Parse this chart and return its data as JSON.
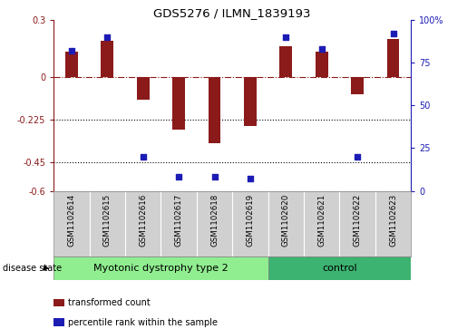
{
  "title": "GDS5276 / ILMN_1839193",
  "samples": [
    "GSM1102614",
    "GSM1102615",
    "GSM1102616",
    "GSM1102617",
    "GSM1102618",
    "GSM1102619",
    "GSM1102620",
    "GSM1102621",
    "GSM1102622",
    "GSM1102623"
  ],
  "transformed_count": [
    0.13,
    0.19,
    -0.12,
    -0.28,
    -0.35,
    -0.26,
    0.16,
    0.13,
    -0.09,
    0.2
  ],
  "percentile_rank": [
    82,
    90,
    20,
    8,
    8,
    7,
    90,
    83,
    20,
    92
  ],
  "ylim_left": [
    -0.6,
    0.3
  ],
  "ylim_right": [
    0,
    100
  ],
  "yticks_left": [
    0.3,
    0.0,
    -0.225,
    -0.45,
    -0.6
  ],
  "yticks_left_labels": [
    "0.3",
    "0",
    "-0.225",
    "-0.45",
    "-0.6"
  ],
  "yticks_right": [
    100,
    75,
    50,
    25,
    0
  ],
  "yticks_right_labels": [
    "100%",
    "75",
    "50",
    "25",
    "0"
  ],
  "hline_y": 0.0,
  "dotted_lines": [
    -0.225,
    -0.45
  ],
  "bar_color": "#8B1A1A",
  "dot_color": "#1C1CB5",
  "group1_label": "Myotonic dystrophy type 2",
  "group1_indices": [
    0,
    1,
    2,
    3,
    4,
    5
  ],
  "group2_label": "control",
  "group2_indices": [
    6,
    7,
    8,
    9
  ],
  "group1_color": "#90EE90",
  "group2_color": "#3CB371",
  "disease_state_label": "disease state",
  "legend_bar_label": "transformed count",
  "legend_dot_label": "percentile rank within the sample",
  "xlabels_bg": "#d0d0d0",
  "bar_width": 0.35
}
